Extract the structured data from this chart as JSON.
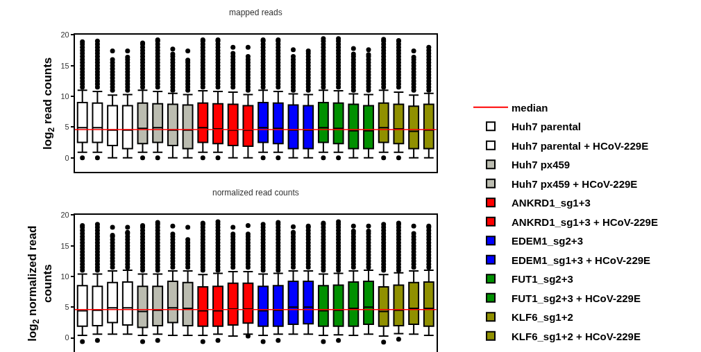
{
  "chart_data": [
    {
      "type": "box",
      "title": "mapped reads",
      "ylabel": "log$_{2}$ read counts",
      "categories": [
        null,
        null,
        null,
        null,
        null,
        null,
        null,
        null,
        null,
        null,
        null,
        null,
        null,
        null,
        null,
        null,
        null,
        null,
        null,
        null,
        null,
        null,
        null,
        null
      ],
      "ylim": [
        -2.3,
        20
      ],
      "yticks": [
        0,
        5,
        10,
        15,
        20
      ],
      "legend": "right",
      "ref_lines": [
        {
          "axis": "y",
          "value": 4.6,
          "label": "median",
          "color": "#ff0000"
        }
      ],
      "series": [
        {
          "name": "Huh7 parental",
          "color": "#ffffff",
          "boxes": [
            {
              "low": 0.9,
              "q1": 2.5,
              "median": 4.9,
              "q3": 9.0,
              "high": 11.0,
              "outliers": [
                0,
                11.5,
                12,
                12.5,
                13,
                13.5,
                14,
                14.5,
                15,
                15.5,
                16,
                16.5,
                17,
                17.5,
                18,
                18.5,
                18.9
              ]
            },
            {
              "low": 0.9,
              "q1": 2.5,
              "median": 4.9,
              "q3": 8.9,
              "high": 10.8,
              "outliers": [
                0,
                11.5,
                12,
                12.5,
                13,
                13.5,
                14,
                14.5,
                15,
                15.5,
                16,
                16.5,
                17,
                17.5,
                18,
                18.5,
                19
              ]
            },
            null,
            null,
            null,
            null,
            null,
            null,
            null,
            null,
            null,
            null,
            null,
            null,
            null,
            null,
            null,
            null,
            null,
            null,
            null,
            null,
            null,
            null
          ]
        },
        {
          "name": "Huh7 parental + HCoV-229E",
          "color": "#ffffff",
          "boxes": [
            null,
            null,
            {
              "low": 0,
              "q1": 2.0,
              "median": 4.5,
              "q3": 8.5,
              "high": 10.2,
              "outliers": [
                11,
                11.5,
                12,
                12.5,
                13,
                13.5,
                14,
                14.5,
                15,
                15.5,
                16,
                17.4
              ]
            },
            {
              "low": 0,
              "q1": 1.5,
              "median": 4.5,
              "q3": 8.5,
              "high": 10.3,
              "outliers": [
                11,
                11.5,
                12,
                12.5,
                13,
                13.5,
                14,
                14.5,
                15,
                15.5,
                16,
                16.4,
                17.4
              ]
            },
            null,
            null,
            null,
            null,
            null,
            null,
            null,
            null,
            null,
            null,
            null,
            null,
            null,
            null,
            null,
            null,
            null,
            null,
            null,
            null
          ]
        },
        {
          "name": "Huh7 px459",
          "color": "#bbbcb0",
          "boxes": [
            null,
            null,
            null,
            null,
            {
              "low": 0.9,
              "q1": 2.3,
              "median": 4.8,
              "q3": 8.9,
              "high": 11.0,
              "outliers": [
                0,
                11.5,
                12,
                12.5,
                13,
                13.5,
                14,
                14.5,
                15,
                15.5,
                16,
                16.5,
                17,
                17.5,
                18,
                18.5,
                18.7
              ]
            },
            {
              "low": 0.9,
              "q1": 2.5,
              "median": 4.9,
              "q3": 8.8,
              "high": 10.8,
              "outliers": [
                0,
                11.5,
                12,
                12.5,
                13,
                13.5,
                14,
                14.5,
                15,
                15.5,
                16,
                16.5,
                17,
                17.5,
                18,
                18.5,
                19,
                19.2
              ]
            },
            null,
            null,
            null,
            null,
            null,
            null,
            null,
            null,
            null,
            null,
            null,
            null,
            null,
            null,
            null,
            null,
            null,
            null
          ]
        },
        {
          "name": "Huh7 px459 + HCoV-229E",
          "color": "#bbbcb0",
          "boxes": [
            null,
            null,
            null,
            null,
            null,
            null,
            {
              "low": 0,
              "q1": 2.0,
              "median": 4.5,
              "q3": 8.7,
              "high": 10.5,
              "outliers": [
                11,
                11.5,
                12,
                12.5,
                13,
                13.5,
                14,
                14.5,
                15,
                15.5,
                16,
                16.5,
                16.9,
                17.7
              ]
            },
            {
              "low": 0,
              "q1": 1.5,
              "median": 4.5,
              "q3": 8.6,
              "high": 10.3,
              "outliers": [
                11,
                11.5,
                12,
                12.5,
                13,
                13.5,
                14,
                14.5,
                15,
                15.5,
                15.9,
                17.4
              ]
            },
            null,
            null,
            null,
            null,
            null,
            null,
            null,
            null,
            null,
            null,
            null,
            null,
            null,
            null,
            null,
            null
          ]
        },
        {
          "name": "ANKRD1_sg1+3",
          "color": "#ff0000",
          "boxes": [
            null,
            null,
            null,
            null,
            null,
            null,
            null,
            null,
            {
              "low": 0.9,
              "q1": 2.5,
              "median": 4.9,
              "q3": 8.9,
              "high": 10.9,
              "outliers": [
                0,
                11.5,
                12,
                12.5,
                13,
                13.5,
                14,
                14.5,
                15,
                15.5,
                16,
                16.5,
                17,
                17.5,
                18,
                18.5,
                19,
                19.2
              ]
            },
            {
              "low": 0.9,
              "q1": 2.3,
              "median": 4.7,
              "q3": 8.8,
              "high": 10.8,
              "outliers": [
                0,
                11.5,
                12,
                12.5,
                13,
                13.5,
                14,
                14.5,
                15,
                15.5,
                16,
                16.5,
                17,
                17.5,
                18,
                18.5,
                19,
                19.2
              ]
            },
            null,
            null,
            null,
            null,
            null,
            null,
            null,
            null,
            null,
            null,
            null,
            null,
            null,
            null
          ]
        },
        {
          "name": "ANKRD1_sg1+3 + HCoV-229E",
          "color": "#ff0000",
          "boxes": [
            null,
            null,
            null,
            null,
            null,
            null,
            null,
            null,
            null,
            null,
            {
              "low": 0,
              "q1": 2.0,
              "median": 4.5,
              "q3": 8.7,
              "high": 10.7,
              "outliers": [
                11.5,
                12,
                12.5,
                13,
                13.5,
                14,
                14.5,
                15,
                15.5,
                16,
                16.5,
                17,
                18.0
              ]
            },
            {
              "low": 0,
              "q1": 1.9,
              "median": 4.5,
              "q3": 8.5,
              "high": 10.3,
              "outliers": [
                11,
                11.5,
                12,
                12.5,
                13,
                13.5,
                14,
                14.5,
                15,
                15.5,
                16,
                16.5,
                18.0
              ]
            },
            null,
            null,
            null,
            null,
            null,
            null,
            null,
            null,
            null,
            null,
            null,
            null
          ]
        },
        {
          "name": "EDEM1_sg2+3",
          "color": "#0000ff",
          "boxes": [
            null,
            null,
            null,
            null,
            null,
            null,
            null,
            null,
            null,
            null,
            null,
            null,
            {
              "low": 0.9,
              "q1": 2.5,
              "median": 4.9,
              "q3": 9.0,
              "high": 11.0,
              "outliers": [
                0,
                11.5,
                12,
                12.5,
                13,
                13.5,
                14,
                14.5,
                15,
                15.5,
                16,
                16.5,
                17,
                17.5,
                18,
                18.5,
                19,
                19.2
              ]
            },
            {
              "low": 0.9,
              "q1": 2.3,
              "median": 4.8,
              "q3": 8.9,
              "high": 10.8,
              "outliers": [
                0,
                11.5,
                12,
                12.5,
                13,
                13.5,
                14,
                14.5,
                15,
                15.5,
                16,
                16.5,
                17,
                17.5,
                18,
                18.5,
                19,
                19.2
              ]
            },
            null,
            null,
            null,
            null,
            null,
            null,
            null,
            null,
            null,
            null
          ]
        },
        {
          "name": "EDEM1_sg1+3 + HCoV-229E",
          "color": "#0000ff",
          "boxes": [
            null,
            null,
            null,
            null,
            null,
            null,
            null,
            null,
            null,
            null,
            null,
            null,
            null,
            null,
            {
              "low": 0,
              "q1": 1.5,
              "median": 4.5,
              "q3": 8.6,
              "high": 10.4,
              "outliers": [
                11,
                11.5,
                12,
                12.5,
                13,
                13.5,
                14,
                14.5,
                15,
                15.5,
                16,
                16.5,
                17.6
              ]
            },
            {
              "low": 0,
              "q1": 1.5,
              "median": 4.5,
              "q3": 8.5,
              "high": 10.3,
              "outliers": [
                11,
                11.5,
                12,
                12.5,
                13,
                13.5,
                14,
                14.5,
                15,
                15.5,
                16,
                16.5,
                17,
                17.4
              ]
            },
            null,
            null,
            null,
            null,
            null,
            null,
            null,
            null
          ]
        },
        {
          "name": "FUT1_sg2+3",
          "color": "#009000",
          "boxes": [
            null,
            null,
            null,
            null,
            null,
            null,
            null,
            null,
            null,
            null,
            null,
            null,
            null,
            null,
            null,
            null,
            {
              "low": 0.9,
              "q1": 2.5,
              "median": 4.9,
              "q3": 9.0,
              "high": 11.0,
              "outliers": [
                0,
                11.5,
                12,
                12.5,
                13,
                13.5,
                14,
                14.5,
                15,
                15.5,
                16,
                16.5,
                17,
                17.5,
                18,
                18.5,
                19,
                19.4
              ]
            },
            {
              "low": 0.9,
              "q1": 2.3,
              "median": 4.8,
              "q3": 8.9,
              "high": 10.9,
              "outliers": [
                0,
                11.5,
                12,
                12.5,
                13,
                13.5,
                14,
                14.5,
                15,
                15.5,
                16,
                16.5,
                17,
                17.5,
                18,
                18.5,
                19,
                19.4
              ]
            },
            null,
            null,
            null,
            null,
            null,
            null
          ]
        },
        {
          "name": "FUT1_sg2+3 + HCoV-229E",
          "color": "#009000",
          "boxes": [
            null,
            null,
            null,
            null,
            null,
            null,
            null,
            null,
            null,
            null,
            null,
            null,
            null,
            null,
            null,
            null,
            null,
            null,
            {
              "low": 0,
              "q1": 1.5,
              "median": 4.4,
              "q3": 8.7,
              "high": 10.4,
              "outliers": [
                11,
                11.5,
                12,
                12.5,
                13,
                13.5,
                14,
                14.5,
                15,
                15.5,
                16,
                16.5,
                16.9,
                17.8
              ]
            },
            {
              "low": 0,
              "q1": 1.5,
              "median": 4.4,
              "q3": 8.5,
              "high": 10.3,
              "outliers": [
                11,
                11.5,
                12,
                12.5,
                13,
                13.5,
                14,
                14.5,
                15,
                15.5,
                16,
                16.5,
                16.8,
                17.6
              ]
            },
            null,
            null,
            null,
            null
          ]
        },
        {
          "name": "KLF6_sg1+2",
          "color": "#909000",
          "boxes": [
            null,
            null,
            null,
            null,
            null,
            null,
            null,
            null,
            null,
            null,
            null,
            null,
            null,
            null,
            null,
            null,
            null,
            null,
            null,
            null,
            {
              "low": 0.9,
              "q1": 2.5,
              "median": 4.9,
              "q3": 8.9,
              "high": 11.0,
              "outliers": [
                0,
                11.5,
                12,
                12.5,
                13,
                13.5,
                14,
                14.5,
                15,
                15.5,
                16,
                16.5,
                17,
                17.5,
                18,
                18.5,
                19,
                19.3
              ]
            },
            {
              "low": 0.9,
              "q1": 2.3,
              "median": 4.7,
              "q3": 8.7,
              "high": 10.7,
              "outliers": [
                0,
                11.5,
                12,
                12.5,
                13,
                13.5,
                14,
                14.5,
                15,
                15.5,
                16,
                16.5,
                17,
                17.5,
                18,
                18.5,
                19,
                19.1
              ]
            },
            null,
            null
          ]
        },
        {
          "name": "KLF6_sg1+2 + HCoV-229E",
          "color": "#909000",
          "boxes": [
            null,
            null,
            null,
            null,
            null,
            null,
            null,
            null,
            null,
            null,
            null,
            null,
            null,
            null,
            null,
            null,
            null,
            null,
            null,
            null,
            null,
            null,
            {
              "low": 0,
              "q1": 1.5,
              "median": 4.3,
              "q3": 8.4,
              "high": 10.2,
              "outliers": [
                11,
                11.5,
                12,
                12.5,
                13,
                13.5,
                14,
                14.5,
                15,
                15.5,
                16,
                16.4,
                17.4
              ]
            },
            {
              "low": 0,
              "q1": 1.5,
              "median": 4.5,
              "q3": 8.7,
              "high": 10.5,
              "outliers": [
                11,
                11.5,
                12,
                12.5,
                13,
                13.5,
                14,
                14.5,
                15,
                15.5,
                16,
                16.5,
                17,
                17.5,
                18.0
              ]
            }
          ]
        }
      ]
    },
    {
      "type": "box",
      "title": "normalized read counts",
      "ylabel": "log$_{2}$ normalized read counts",
      "categories": [
        null,
        null,
        null,
        null,
        null,
        null,
        null,
        null,
        null,
        null,
        null,
        null,
        null,
        null,
        null,
        null,
        null,
        null,
        null,
        null,
        null,
        null,
        null,
        null
      ],
      "ylim": [
        -2.3,
        20
      ],
      "yticks": [
        0,
        5,
        10,
        15,
        20
      ],
      "ref_lines": [
        {
          "axis": "y",
          "value": 4.6,
          "color": "#ff0000"
        }
      ],
      "series": [
        {
          "color": "#ffffff",
          "boxes": [
            {
              "low": 0.4,
              "q1": 1.9,
              "median": 4.4,
              "q3": 8.5,
              "high": 10.4,
              "outliers": [
                -0.6,
                11,
                11.5,
                12,
                12.5,
                13,
                13.5,
                14,
                14.5,
                15,
                15.5,
                16,
                16.5,
                17,
                17.5,
                18,
                18.3
              ]
            },
            {
              "low": 0.6,
              "q1": 2.0,
              "median": 4.5,
              "q3": 8.4,
              "high": 10.4,
              "outliers": [
                -0.4,
                11,
                11.5,
                12,
                12.5,
                13,
                13.5,
                14,
                14.5,
                15,
                15.5,
                16,
                16.5,
                17,
                17.5,
                18,
                18.5
              ]
            },
            null,
            null,
            null,
            null,
            null,
            null,
            null,
            null,
            null,
            null,
            null,
            null,
            null,
            null,
            null,
            null,
            null,
            null,
            null,
            null,
            null,
            null
          ]
        },
        {
          "color": "#ffffff",
          "boxes": [
            null,
            null,
            {
              "low": 0.6,
              "q1": 2.5,
              "median": 4.9,
              "q3": 9.0,
              "high": 10.9,
              "outliers": [
                11.5,
                12,
                12.5,
                13,
                13.5,
                14,
                14.5,
                15,
                15.5,
                16,
                16.5,
                16.7,
                18.0
              ]
            },
            {
              "low": 0.6,
              "q1": 2.1,
              "median": 4.9,
              "q3": 9.1,
              "high": 11.0,
              "outliers": [
                11.5,
                12,
                12.5,
                13,
                13.5,
                14,
                14.5,
                15,
                15.5,
                16,
                16.5,
                17,
                17.2,
                18.0
              ]
            },
            null,
            null,
            null,
            null,
            null,
            null,
            null,
            null,
            null,
            null,
            null,
            null,
            null,
            null,
            null,
            null,
            null,
            null,
            null,
            null
          ]
        },
        {
          "color": "#bbbcb0",
          "boxes": [
            null,
            null,
            null,
            null,
            {
              "low": 0.4,
              "q1": 1.7,
              "median": 4.3,
              "q3": 8.4,
              "high": 10.4,
              "outliers": [
                -0.6,
                11,
                11.5,
                12,
                12.5,
                13,
                13.5,
                14,
                14.5,
                15,
                15.5,
                16,
                16.5,
                17,
                17.5,
                18,
                18.3
              ]
            },
            {
              "low": 0.6,
              "q1": 2.0,
              "median": 4.5,
              "q3": 8.4,
              "high": 10.4,
              "outliers": [
                -0.4,
                11,
                11.5,
                12,
                12.5,
                13,
                13.5,
                14,
                14.5,
                15,
                15.5,
                16,
                16.5,
                17,
                17.5,
                18,
                18.5,
                18.8
              ]
            },
            null,
            null,
            null,
            null,
            null,
            null,
            null,
            null,
            null,
            null,
            null,
            null,
            null,
            null,
            null,
            null,
            null,
            null
          ]
        },
        {
          "color": "#bbbcb0",
          "boxes": [
            null,
            null,
            null,
            null,
            null,
            null,
            {
              "low": 0.4,
              "q1": 2.5,
              "median": 4.9,
              "q3": 9.2,
              "high": 10.9,
              "outliers": [
                11.5,
                12,
                12.5,
                13,
                13.5,
                14,
                14.5,
                15,
                15.5,
                16,
                16.5,
                16.9,
                18.2
              ]
            },
            {
              "low": 0.4,
              "q1": 2.0,
              "median": 4.8,
              "q3": 9.0,
              "high": 10.9,
              "outliers": [
                11.5,
                12,
                12.5,
                13,
                13.5,
                14,
                14.5,
                15,
                15.5,
                16,
                18.0
              ]
            },
            null,
            null,
            null,
            null,
            null,
            null,
            null,
            null,
            null,
            null,
            null,
            null,
            null,
            null,
            null,
            null
          ]
        },
        {
          "color": "#ff0000",
          "boxes": [
            null,
            null,
            null,
            null,
            null,
            null,
            null,
            null,
            {
              "low": 0.4,
              "q1": 1.9,
              "median": 4.4,
              "q3": 8.3,
              "high": 10.3,
              "outliers": [
                -0.6,
                11,
                11.5,
                12,
                12.5,
                13,
                13.5,
                14,
                14.5,
                15,
                15.5,
                16,
                16.5,
                17,
                17.5,
                18,
                18.5,
                18.7
              ]
            },
            {
              "low": 0.6,
              "q1": 1.9,
              "median": 4.4,
              "q3": 8.4,
              "high": 10.5,
              "outliers": [
                -0.4,
                11,
                11.5,
                12,
                12.5,
                13,
                13.5,
                14,
                14.5,
                15,
                15.5,
                16,
                16.5,
                17,
                17.5,
                18,
                18.5,
                18.9
              ]
            },
            null,
            null,
            null,
            null,
            null,
            null,
            null,
            null,
            null,
            null,
            null,
            null,
            null,
            null
          ]
        },
        {
          "color": "#ff0000",
          "boxes": [
            null,
            null,
            null,
            null,
            null,
            null,
            null,
            null,
            null,
            null,
            {
              "low": 0.3,
              "q1": 2.1,
              "median": 4.7,
              "q3": 8.9,
              "high": 10.8,
              "outliers": [
                11.5,
                12,
                12.5,
                13,
                13.5,
                14,
                14.5,
                15,
                15.5,
                16,
                16.5,
                16.9,
                18.0
              ]
            },
            {
              "low": 0.6,
              "q1": 2.4,
              "median": 4.7,
              "q3": 8.9,
              "high": 10.8,
              "outliers": [
                0.3,
                11.5,
                12,
                12.5,
                13,
                13.5,
                14,
                14.5,
                15,
                15.5,
                16,
                16.5,
                16.9,
                18.3
              ]
            },
            null,
            null,
            null,
            null,
            null,
            null,
            null,
            null,
            null,
            null,
            null,
            null
          ]
        },
        {
          "color": "#0000ff",
          "boxes": [
            null,
            null,
            null,
            null,
            null,
            null,
            null,
            null,
            null,
            null,
            null,
            null,
            {
              "low": 0.4,
              "q1": 1.9,
              "median": 4.4,
              "q3": 8.4,
              "high": 10.4,
              "outliers": [
                -0.6,
                11,
                11.5,
                12,
                12.5,
                13,
                13.5,
                14,
                14.5,
                15,
                15.5,
                16,
                16.5,
                17,
                17.5,
                18,
                18.5
              ]
            },
            {
              "low": 0.6,
              "q1": 1.9,
              "median": 4.5,
              "q3": 8.5,
              "high": 10.5,
              "outliers": [
                -0.4,
                11,
                11.5,
                12,
                12.5,
                13,
                13.5,
                14,
                14.5,
                15,
                15.5,
                16,
                16.5,
                17,
                17.5,
                18,
                18.5,
                18.8
              ]
            },
            null,
            null,
            null,
            null,
            null,
            null,
            null,
            null,
            null,
            null
          ]
        },
        {
          "color": "#0000ff",
          "boxes": [
            null,
            null,
            null,
            null,
            null,
            null,
            null,
            null,
            null,
            null,
            null,
            null,
            null,
            null,
            {
              "low": 0.6,
              "q1": 2.2,
              "median": 5.0,
              "q3": 9.2,
              "high": 10.9,
              "outliers": [
                11.5,
                12,
                12.5,
                13,
                13.5,
                14,
                14.5,
                15,
                15.5,
                16,
                16.5,
                17,
                17.2,
                18.1
              ]
            },
            {
              "low": 0.6,
              "q1": 2.3,
              "median": 5.0,
              "q3": 9.2,
              "high": 10.9,
              "outliers": [
                11.5,
                12,
                12.5,
                13,
                13.5,
                14,
                14.5,
                15,
                15.5,
                16,
                16.5,
                17,
                17.5,
                18,
                18.2
              ]
            },
            null,
            null,
            null,
            null,
            null,
            null,
            null,
            null
          ]
        },
        {
          "color": "#009000",
          "boxes": [
            null,
            null,
            null,
            null,
            null,
            null,
            null,
            null,
            null,
            null,
            null,
            null,
            null,
            null,
            null,
            null,
            {
              "low": 0.4,
              "q1": 1.9,
              "median": 4.4,
              "q3": 8.5,
              "high": 10.4,
              "outliers": [
                -0.6,
                11,
                11.5,
                12,
                12.5,
                13,
                13.5,
                14,
                14.5,
                15,
                15.5,
                16,
                16.5,
                17,
                17.5,
                18,
                18.5,
                18.7
              ]
            },
            {
              "low": 0.5,
              "q1": 1.9,
              "median": 4.5,
              "q3": 8.6,
              "high": 10.5,
              "outliers": [
                -0.4,
                11,
                11.5,
                12,
                12.5,
                13,
                13.5,
                14,
                14.5,
                15,
                15.5,
                16,
                16.5,
                17,
                17.5,
                18,
                18.5,
                18.9
              ]
            },
            null,
            null,
            null,
            null,
            null,
            null
          ]
        },
        {
          "color": "#009000",
          "boxes": [
            null,
            null,
            null,
            null,
            null,
            null,
            null,
            null,
            null,
            null,
            null,
            null,
            null,
            null,
            null,
            null,
            null,
            null,
            {
              "low": 0.4,
              "q1": 1.9,
              "median": 4.8,
              "q3": 9.1,
              "high": 10.9,
              "outliers": [
                11.5,
                12,
                12.5,
                13,
                13.5,
                14,
                14.5,
                15,
                15.5,
                16,
                16.5,
                17,
                17.4,
                18.2
              ]
            },
            {
              "low": 0.6,
              "q1": 2.2,
              "median": 5.0,
              "q3": 9.2,
              "high": 11.0,
              "outliers": [
                11.5,
                12,
                12.5,
                13,
                13.5,
                14,
                14.5,
                15,
                15.5,
                16,
                16.5,
                17,
                17.4,
                18.2
              ]
            },
            null,
            null,
            null,
            null
          ]
        },
        {
          "color": "#909000",
          "boxes": [
            null,
            null,
            null,
            null,
            null,
            null,
            null,
            null,
            null,
            null,
            null,
            null,
            null,
            null,
            null,
            null,
            null,
            null,
            null,
            null,
            {
              "low": 0.3,
              "q1": 1.9,
              "median": 4.3,
              "q3": 8.3,
              "high": 10.3,
              "outliers": [
                -0.7,
                11,
                11.5,
                12,
                12.5,
                13,
                13.5,
                14,
                14.5,
                15,
                15.5,
                16,
                16.5,
                17,
                17.5,
                18,
                18.5
              ]
            },
            {
              "low": 0.7,
              "q1": 2.0,
              "median": 4.5,
              "q3": 8.6,
              "high": 10.6,
              "outliers": [
                -0.2,
                11,
                11.5,
                12,
                12.5,
                13,
                13.5,
                14,
                14.5,
                15,
                15.5,
                16,
                16.5,
                17,
                17.5,
                18,
                18.5,
                18.7
              ]
            },
            null,
            null
          ]
        },
        {
          "color": "#909000",
          "boxes": [
            null,
            null,
            null,
            null,
            null,
            null,
            null,
            null,
            null,
            null,
            null,
            null,
            null,
            null,
            null,
            null,
            null,
            null,
            null,
            null,
            null,
            null,
            {
              "low": 0.6,
              "q1": 2.2,
              "median": 4.8,
              "q3": 9.0,
              "high": 10.9,
              "outliers": [
                11.5,
                12,
                12.5,
                13,
                13.5,
                14,
                14.5,
                15,
                15.5,
                16,
                16.5,
                17,
                18.2
              ]
            },
            {
              "low": 0.4,
              "q1": 1.9,
              "median": 4.8,
              "q3": 9.1,
              "high": 11.0,
              "outliers": [
                11.5,
                12,
                12.5,
                13,
                13.5,
                14,
                14.5,
                15,
                15.5,
                16,
                16.5,
                17,
                17.5,
                18,
                18.2
              ]
            }
          ]
        }
      ]
    }
  ]
}
